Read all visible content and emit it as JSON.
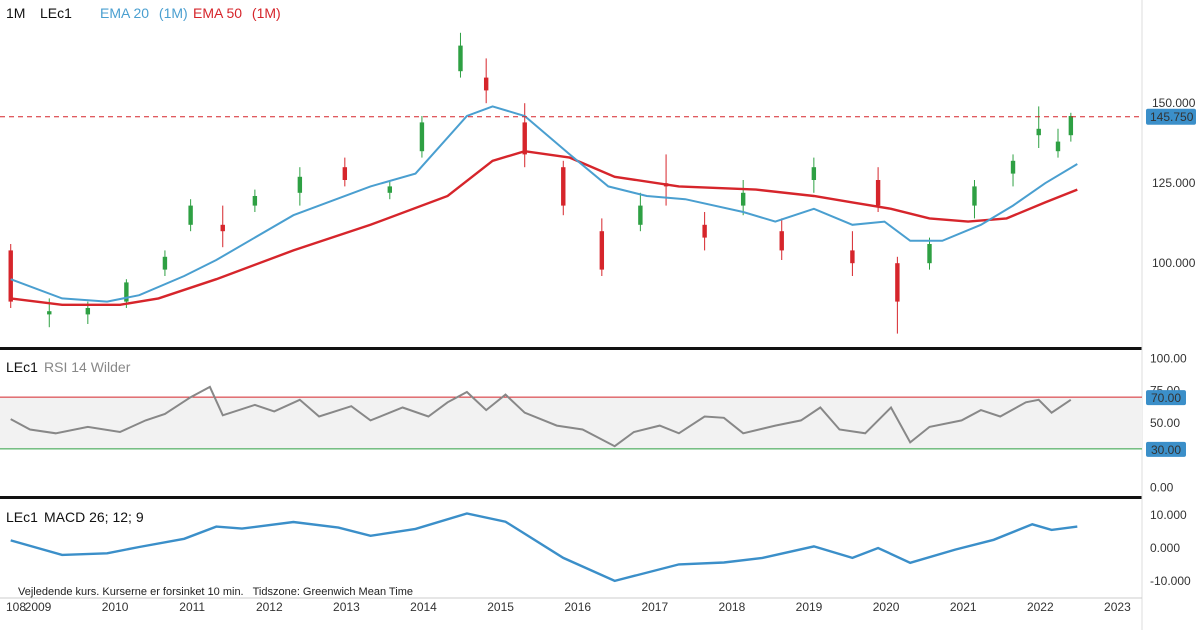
{
  "chart_data": [
    {
      "type": "candlestick",
      "panel": "price",
      "header": {
        "timeframe": "1M",
        "symbol": "LEc1"
      },
      "series": [
        {
          "name": "EMA 20",
          "suffix": "(1M)",
          "color": "#4a9fd0"
        },
        {
          "name": "EMA 50",
          "suffix": "(1M)",
          "color": "#d6252b"
        }
      ],
      "yticks": [
        "150.000",
        "125.000",
        "100.000"
      ],
      "ytick_values": [
        150,
        125,
        100
      ],
      "ylim": [
        76,
        176
      ],
      "last_price": "145.750",
      "last_price_value": 145.75,
      "colors": {
        "up": "#2ea043",
        "down": "#d6252b",
        "ema20": "#4a9fd0",
        "ema50": "#d6252b"
      },
      "x_start": "2008-10",
      "x_end": "2023-05",
      "ohlc_monthly": [
        {
          "t": "2008-10",
          "o": 104,
          "h": 106,
          "l": 86,
          "c": 88
        },
        {
          "t": "2009-04",
          "o": 84,
          "h": 89,
          "l": 80,
          "c": 85
        },
        {
          "t": "2009-10",
          "o": 84,
          "h": 88,
          "l": 81,
          "c": 86
        },
        {
          "t": "2010-04",
          "o": 88,
          "h": 95,
          "l": 86,
          "c": 94
        },
        {
          "t": "2010-10",
          "o": 98,
          "h": 104,
          "l": 96,
          "c": 102
        },
        {
          "t": "2011-02",
          "o": 112,
          "h": 120,
          "l": 110,
          "c": 118
        },
        {
          "t": "2011-07",
          "o": 112,
          "h": 118,
          "l": 105,
          "c": 110
        },
        {
          "t": "2011-12",
          "o": 118,
          "h": 123,
          "l": 116,
          "c": 121
        },
        {
          "t": "2012-07",
          "o": 122,
          "h": 130,
          "l": 118,
          "c": 127
        },
        {
          "t": "2013-02",
          "o": 130,
          "h": 133,
          "l": 124,
          "c": 126
        },
        {
          "t": "2013-09",
          "o": 122,
          "h": 126,
          "l": 120,
          "c": 124
        },
        {
          "t": "2014-02",
          "o": 135,
          "h": 146,
          "l": 133,
          "c": 144
        },
        {
          "t": "2014-08",
          "o": 160,
          "h": 172,
          "l": 158,
          "c": 168
        },
        {
          "t": "2014-12",
          "o": 158,
          "h": 164,
          "l": 150,
          "c": 154
        },
        {
          "t": "2015-06",
          "o": 144,
          "h": 150,
          "l": 130,
          "c": 134
        },
        {
          "t": "2015-12",
          "o": 130,
          "h": 132,
          "l": 115,
          "c": 118
        },
        {
          "t": "2016-06",
          "o": 110,
          "h": 114,
          "l": 96,
          "c": 98
        },
        {
          "t": "2016-12",
          "o": 112,
          "h": 122,
          "l": 110,
          "c": 118
        },
        {
          "t": "2017-04",
          "o": 125,
          "h": 134,
          "l": 118,
          "c": 124
        },
        {
          "t": "2017-10",
          "o": 112,
          "h": 116,
          "l": 104,
          "c": 108
        },
        {
          "t": "2018-04",
          "o": 118,
          "h": 126,
          "l": 115,
          "c": 122
        },
        {
          "t": "2018-10",
          "o": 110,
          "h": 114,
          "l": 101,
          "c": 104
        },
        {
          "t": "2019-03",
          "o": 126,
          "h": 133,
          "l": 122,
          "c": 130
        },
        {
          "t": "2019-09",
          "o": 104,
          "h": 110,
          "l": 96,
          "c": 100
        },
        {
          "t": "2020-01",
          "o": 126,
          "h": 130,
          "l": 116,
          "c": 118
        },
        {
          "t": "2020-04",
          "o": 100,
          "h": 102,
          "l": 78,
          "c": 88
        },
        {
          "t": "2020-09",
          "o": 100,
          "h": 108,
          "l": 98,
          "c": 106
        },
        {
          "t": "2021-04",
          "o": 118,
          "h": 126,
          "l": 114,
          "c": 124
        },
        {
          "t": "2021-10",
          "o": 128,
          "h": 134,
          "l": 124,
          "c": 132
        },
        {
          "t": "2022-02",
          "o": 140,
          "h": 149,
          "l": 136,
          "c": 142
        },
        {
          "t": "2022-05",
          "o": 135,
          "h": 142,
          "l": 133,
          "c": 138
        },
        {
          "t": "2022-07",
          "o": 140,
          "h": 147,
          "l": 138,
          "c": 146
        }
      ],
      "ema20": [
        {
          "t": "2008-10",
          "v": 95
        },
        {
          "t": "2009-06",
          "v": 89
        },
        {
          "t": "2010-01",
          "v": 88
        },
        {
          "t": "2010-06",
          "v": 90
        },
        {
          "t": "2011-01",
          "v": 96
        },
        {
          "t": "2011-06",
          "v": 101
        },
        {
          "t": "2012-06",
          "v": 115
        },
        {
          "t": "2013-06",
          "v": 124
        },
        {
          "t": "2014-01",
          "v": 128
        },
        {
          "t": "2014-09",
          "v": 146
        },
        {
          "t": "2015-01",
          "v": 149
        },
        {
          "t": "2015-06",
          "v": 146
        },
        {
          "t": "2016-01",
          "v": 134
        },
        {
          "t": "2016-07",
          "v": 124
        },
        {
          "t": "2017-01",
          "v": 121
        },
        {
          "t": "2017-07",
          "v": 120
        },
        {
          "t": "2018-04",
          "v": 116
        },
        {
          "t": "2018-09",
          "v": 113
        },
        {
          "t": "2019-03",
          "v": 117
        },
        {
          "t": "2019-09",
          "v": 112
        },
        {
          "t": "2020-02",
          "v": 113
        },
        {
          "t": "2020-06",
          "v": 107
        },
        {
          "t": "2020-11",
          "v": 107
        },
        {
          "t": "2021-05",
          "v": 112
        },
        {
          "t": "2021-10",
          "v": 118
        },
        {
          "t": "2022-03",
          "v": 125
        },
        {
          "t": "2022-08",
          "v": 131
        }
      ],
      "ema50": [
        {
          "t": "2008-10",
          "v": 89
        },
        {
          "t": "2009-06",
          "v": 87
        },
        {
          "t": "2010-03",
          "v": 87
        },
        {
          "t": "2010-09",
          "v": 89
        },
        {
          "t": "2011-06",
          "v": 95
        },
        {
          "t": "2012-06",
          "v": 104
        },
        {
          "t": "2013-06",
          "v": 112
        },
        {
          "t": "2014-06",
          "v": 121
        },
        {
          "t": "2015-01",
          "v": 132
        },
        {
          "t": "2015-06",
          "v": 135
        },
        {
          "t": "2016-01",
          "v": 133
        },
        {
          "t": "2016-08",
          "v": 127
        },
        {
          "t": "2017-06",
          "v": 124
        },
        {
          "t": "2018-06",
          "v": 123
        },
        {
          "t": "2019-03",
          "v": 121
        },
        {
          "t": "2019-09",
          "v": 119
        },
        {
          "t": "2020-03",
          "v": 117
        },
        {
          "t": "2020-09",
          "v": 114
        },
        {
          "t": "2021-03",
          "v": 113
        },
        {
          "t": "2021-09",
          "v": 114
        },
        {
          "t": "2022-03",
          "v": 119
        },
        {
          "t": "2022-08",
          "v": 123
        }
      ]
    },
    {
      "type": "line",
      "panel": "rsi",
      "header": {
        "symbol": "LEc1",
        "name": "RSI 14 Wilder"
      },
      "yticks": [
        "100.00",
        "75.00",
        "50.00",
        "0.00"
      ],
      "ytick_values": [
        100,
        75,
        50,
        0
      ],
      "ylim": [
        -5,
        105
      ],
      "band_labels": [
        "70.00",
        "30.00"
      ],
      "band": [
        30,
        70
      ],
      "colors": {
        "line": "#888888",
        "upper": "#d6252b",
        "lower": "#2ea043",
        "badge": "#3b8fc9"
      },
      "points": [
        {
          "t": "2008-10",
          "v": 53
        },
        {
          "t": "2009-01",
          "v": 45
        },
        {
          "t": "2009-05",
          "v": 42
        },
        {
          "t": "2009-10",
          "v": 47
        },
        {
          "t": "2010-03",
          "v": 43
        },
        {
          "t": "2010-07",
          "v": 52
        },
        {
          "t": "2010-10",
          "v": 57
        },
        {
          "t": "2011-02",
          "v": 70
        },
        {
          "t": "2011-05",
          "v": 78
        },
        {
          "t": "2011-07",
          "v": 56
        },
        {
          "t": "2011-12",
          "v": 64
        },
        {
          "t": "2012-03",
          "v": 59
        },
        {
          "t": "2012-07",
          "v": 68
        },
        {
          "t": "2012-10",
          "v": 55
        },
        {
          "t": "2013-03",
          "v": 63
        },
        {
          "t": "2013-06",
          "v": 52
        },
        {
          "t": "2013-11",
          "v": 62
        },
        {
          "t": "2014-03",
          "v": 55
        },
        {
          "t": "2014-06",
          "v": 66
        },
        {
          "t": "2014-09",
          "v": 74
        },
        {
          "t": "2014-12",
          "v": 60
        },
        {
          "t": "2015-03",
          "v": 72
        },
        {
          "t": "2015-06",
          "v": 58
        },
        {
          "t": "2015-11",
          "v": 48
        },
        {
          "t": "2016-03",
          "v": 45
        },
        {
          "t": "2016-08",
          "v": 32
        },
        {
          "t": "2016-11",
          "v": 43
        },
        {
          "t": "2017-03",
          "v": 48
        },
        {
          "t": "2017-06",
          "v": 42
        },
        {
          "t": "2017-10",
          "v": 55
        },
        {
          "t": "2018-01",
          "v": 54
        },
        {
          "t": "2018-04",
          "v": 42
        },
        {
          "t": "2018-09",
          "v": 48
        },
        {
          "t": "2019-01",
          "v": 52
        },
        {
          "t": "2019-04",
          "v": 62
        },
        {
          "t": "2019-07",
          "v": 45
        },
        {
          "t": "2019-11",
          "v": 42
        },
        {
          "t": "2020-03",
          "v": 62
        },
        {
          "t": "2020-06",
          "v": 35
        },
        {
          "t": "2020-09",
          "v": 47
        },
        {
          "t": "2021-02",
          "v": 52
        },
        {
          "t": "2021-05",
          "v": 60
        },
        {
          "t": "2021-08",
          "v": 55
        },
        {
          "t": "2021-12",
          "v": 66
        },
        {
          "t": "2022-02",
          "v": 68
        },
        {
          "t": "2022-04",
          "v": 58
        },
        {
          "t": "2022-07",
          "v": 68
        }
      ]
    },
    {
      "type": "line",
      "panel": "macd",
      "header": {
        "symbol": "LEc1",
        "name": "MACD 26; 12; 9"
      },
      "yticks": [
        "10.000",
        "0.000",
        "-10.000"
      ],
      "ytick_values": [
        10,
        0,
        -10
      ],
      "ylim": [
        -14,
        14
      ],
      "colors": {
        "line": "#3b8fc9"
      },
      "points": [
        {
          "t": "2008-10",
          "v": 2.3
        },
        {
          "t": "2009-06",
          "v": -2.1
        },
        {
          "t": "2010-01",
          "v": -1.6
        },
        {
          "t": "2010-06",
          "v": 0.3
        },
        {
          "t": "2011-01",
          "v": 2.8
        },
        {
          "t": "2011-06",
          "v": 6.5
        },
        {
          "t": "2011-10",
          "v": 5.9
        },
        {
          "t": "2012-06",
          "v": 7.9
        },
        {
          "t": "2013-01",
          "v": 6.2
        },
        {
          "t": "2013-06",
          "v": 3.7
        },
        {
          "t": "2014-01",
          "v": 5.8
        },
        {
          "t": "2014-09",
          "v": 10.5
        },
        {
          "t": "2015-03",
          "v": 8.0
        },
        {
          "t": "2015-12",
          "v": -3.0
        },
        {
          "t": "2016-08",
          "v": -10.0
        },
        {
          "t": "2017-06",
          "v": -5.0
        },
        {
          "t": "2018-01",
          "v": -4.4
        },
        {
          "t": "2018-07",
          "v": -3.0
        },
        {
          "t": "2019-03",
          "v": 0.5
        },
        {
          "t": "2019-09",
          "v": -3.0
        },
        {
          "t": "2020-01",
          "v": 0.0
        },
        {
          "t": "2020-06",
          "v": -4.5
        },
        {
          "t": "2021-01",
          "v": -0.5
        },
        {
          "t": "2021-07",
          "v": 2.5
        },
        {
          "t": "2022-01",
          "v": 7.2
        },
        {
          "t": "2022-04",
          "v": 5.5
        },
        {
          "t": "2022-08",
          "v": 6.5
        }
      ]
    }
  ],
  "xaxis": {
    "labels": [
      "108",
      "2009",
      "2010",
      "2011",
      "2012",
      "2013",
      "2014",
      "2015",
      "2016",
      "2017",
      "2018",
      "2019",
      "2020",
      "2021",
      "2022",
      "2023"
    ]
  },
  "footer_note": "Vejledende kurs. Kurserne er forsinket 10 min.   Tidszone: Greenwich Mean Time"
}
